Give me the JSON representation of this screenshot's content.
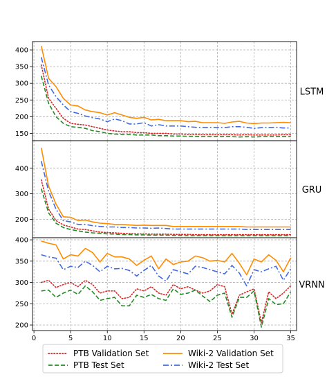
{
  "chart_data": {
    "type": "line",
    "x": [
      1,
      2,
      3,
      4,
      5,
      6,
      7,
      8,
      9,
      10,
      11,
      12,
      13,
      14,
      15,
      16,
      17,
      18,
      19,
      20,
      21,
      22,
      23,
      24,
      25,
      26,
      27,
      28,
      29,
      30,
      31,
      32,
      33,
      34,
      35
    ],
    "x_ticks": [
      "0",
      "5",
      "10",
      "15",
      "20",
      "25",
      "30",
      "35"
    ],
    "xlim": [
      -0.2,
      35.8
    ],
    "grid": true,
    "legend_placement": "bottom",
    "legend": [
      {
        "label": "PTB Validation Set",
        "color": "#d62728",
        "style": "dotted"
      },
      {
        "label": "Wiki-2 Validation Set",
        "color": "#ff8c00",
        "style": "solid"
      },
      {
        "label": "PTB Test Set",
        "color": "#228b22",
        "style": "dashed"
      },
      {
        "label": "Wiki-2 Test Set",
        "color": "#4169e1",
        "style": "dashdot"
      }
    ],
    "panels": [
      {
        "label": "LSTM",
        "ylim": [
          128,
          425
        ],
        "y_ticks": [
          150,
          200,
          250,
          300,
          350,
          400
        ],
        "series": [
          {
            "name": "PTB Validation Set",
            "values": [
              355,
              255,
              225,
              195,
              180,
              177,
              175,
              170,
              165,
              160,
              157,
              155,
              155,
              152,
              152,
              150,
              150,
              150,
              148,
              148,
              147,
              147,
              146,
              146,
              146,
              146,
              146,
              145,
              146,
              145,
              145,
              145,
              145,
              146,
              146
            ]
          },
          {
            "name": "Wiki-2 Validation Set",
            "values": [
              412,
              315,
              290,
              255,
              235,
              232,
              220,
              215,
              212,
              205,
              212,
              205,
              198,
              195,
              198,
              190,
              192,
              188,
              188,
              188,
              185,
              186,
              182,
              182,
              182,
              180,
              184,
              186,
              181,
              179,
              181,
              181,
              182,
              183,
              182
            ]
          },
          {
            "name": "PTB Test Set",
            "values": [
              322,
              240,
              200,
              180,
              170,
              168,
              165,
              158,
              155,
              150,
              148,
              147,
              147,
              145,
              145,
              145,
              143,
              143,
              142,
              142,
              141,
              141,
              140,
              140,
              140,
              140,
              140,
              139,
              140,
              139,
              140,
              140,
              140,
              140,
              140
            ]
          },
          {
            "name": "Wiki-2 Test Set",
            "values": [
              378,
              295,
              260,
              235,
              215,
              210,
              202,
              197,
              193,
              185,
              193,
              188,
              178,
              178,
              182,
              172,
              176,
              172,
              172,
              172,
              170,
              168,
              167,
              168,
              167,
              167,
              170,
              170,
              168,
              165,
              167,
              167,
              168,
              166,
              166
            ]
          }
        ]
      },
      {
        "label": "GRU",
        "ylim": [
          128,
          508
        ],
        "y_ticks": [
          200,
          300,
          400
        ],
        "series": [
          {
            "name": "PTB Validation Set",
            "values": [
              355,
              240,
              195,
              178,
              170,
              162,
              160,
              155,
              150,
              148,
              147,
              145,
              144,
              143,
              143,
              142,
              142,
              142,
              141,
              141,
              141,
              140,
              140,
              140,
              140,
              140,
              140,
              140,
              140,
              140,
              140,
              140,
              140,
              140,
              140
            ]
          },
          {
            "name": "Wiki-2 Validation Set",
            "values": [
              480,
              330,
              260,
              210,
              208,
              195,
              197,
              190,
              185,
              183,
              180,
              180,
              178,
              176,
              177,
              176,
              176,
              176,
              172,
              172,
              172,
              172,
              172,
              172,
              172,
              172,
              172,
              172,
              170,
              170,
              170,
              170,
              170,
              170,
              170
            ]
          },
          {
            "name": "PTB Test Set",
            "values": [
              320,
              225,
              185,
              168,
              160,
              155,
              150,
              147,
              145,
              143,
              142,
              140,
              140,
              139,
              139,
              138,
              138,
              138,
              137,
              137,
              136,
              136,
              136,
              136,
              136,
              136,
              136,
              136,
              136,
              136,
              136,
              136,
              136,
              136,
              136
            ]
          },
          {
            "name": "Wiki-2 Test Set",
            "values": [
              428,
              310,
              240,
              195,
              190,
              180,
              180,
              175,
              172,
              170,
              170,
              168,
              168,
              166,
              166,
              165,
              166,
              164,
              162,
              162,
              162,
              162,
              162,
              162,
              162,
              162,
              162,
              162,
              160,
              160,
              160,
              160,
              160,
              160,
              160
            ]
          }
        ]
      },
      {
        "label": "VRNN",
        "ylim": [
          187,
          405
        ],
        "y_ticks": [
          200,
          250,
          300,
          350,
          400
        ],
        "series": [
          {
            "name": "PTB Validation Set",
            "values": [
              300,
              305,
              288,
              295,
              300,
              290,
              305,
              295,
              275,
              280,
              280,
              262,
              265,
              285,
              280,
              290,
              275,
              270,
              295,
              285,
              290,
              282,
              275,
              280,
              295,
              290,
              225,
              270,
              278,
              285,
              205,
              278,
              262,
              275,
              292
            ]
          },
          {
            "name": "Wiki-2 Validation Set",
            "values": [
              397,
              392,
              388,
              355,
              365,
              362,
              380,
              370,
              348,
              368,
              360,
              360,
              355,
              340,
              352,
              362,
              332,
              355,
              342,
              348,
              350,
              362,
              358,
              350,
              352,
              348,
              368,
              345,
              318,
              355,
              348,
              365,
              352,
              325,
              358
            ]
          },
          {
            "name": "PTB Test Set",
            "values": [
              280,
              282,
              265,
              275,
              282,
              272,
              292,
              278,
              258,
              262,
              265,
              245,
              245,
              270,
              265,
              272,
              262,
              258,
              285,
              272,
              275,
              282,
              268,
              255,
              270,
              275,
              218,
              265,
              265,
              280,
              195,
              262,
              248,
              250,
              278
            ]
          },
          {
            "name": "Wiki-2 Test Set",
            "values": [
              365,
              360,
              357,
              330,
              338,
              335,
              350,
              340,
              325,
              338,
              332,
              333,
              328,
              315,
              328,
              340,
              315,
              303,
              330,
              325,
              320,
              338,
              335,
              330,
              325,
              320,
              340,
              322,
              292,
              330,
              325,
              332,
              338,
              305,
              332
            ]
          }
        ]
      }
    ]
  }
}
